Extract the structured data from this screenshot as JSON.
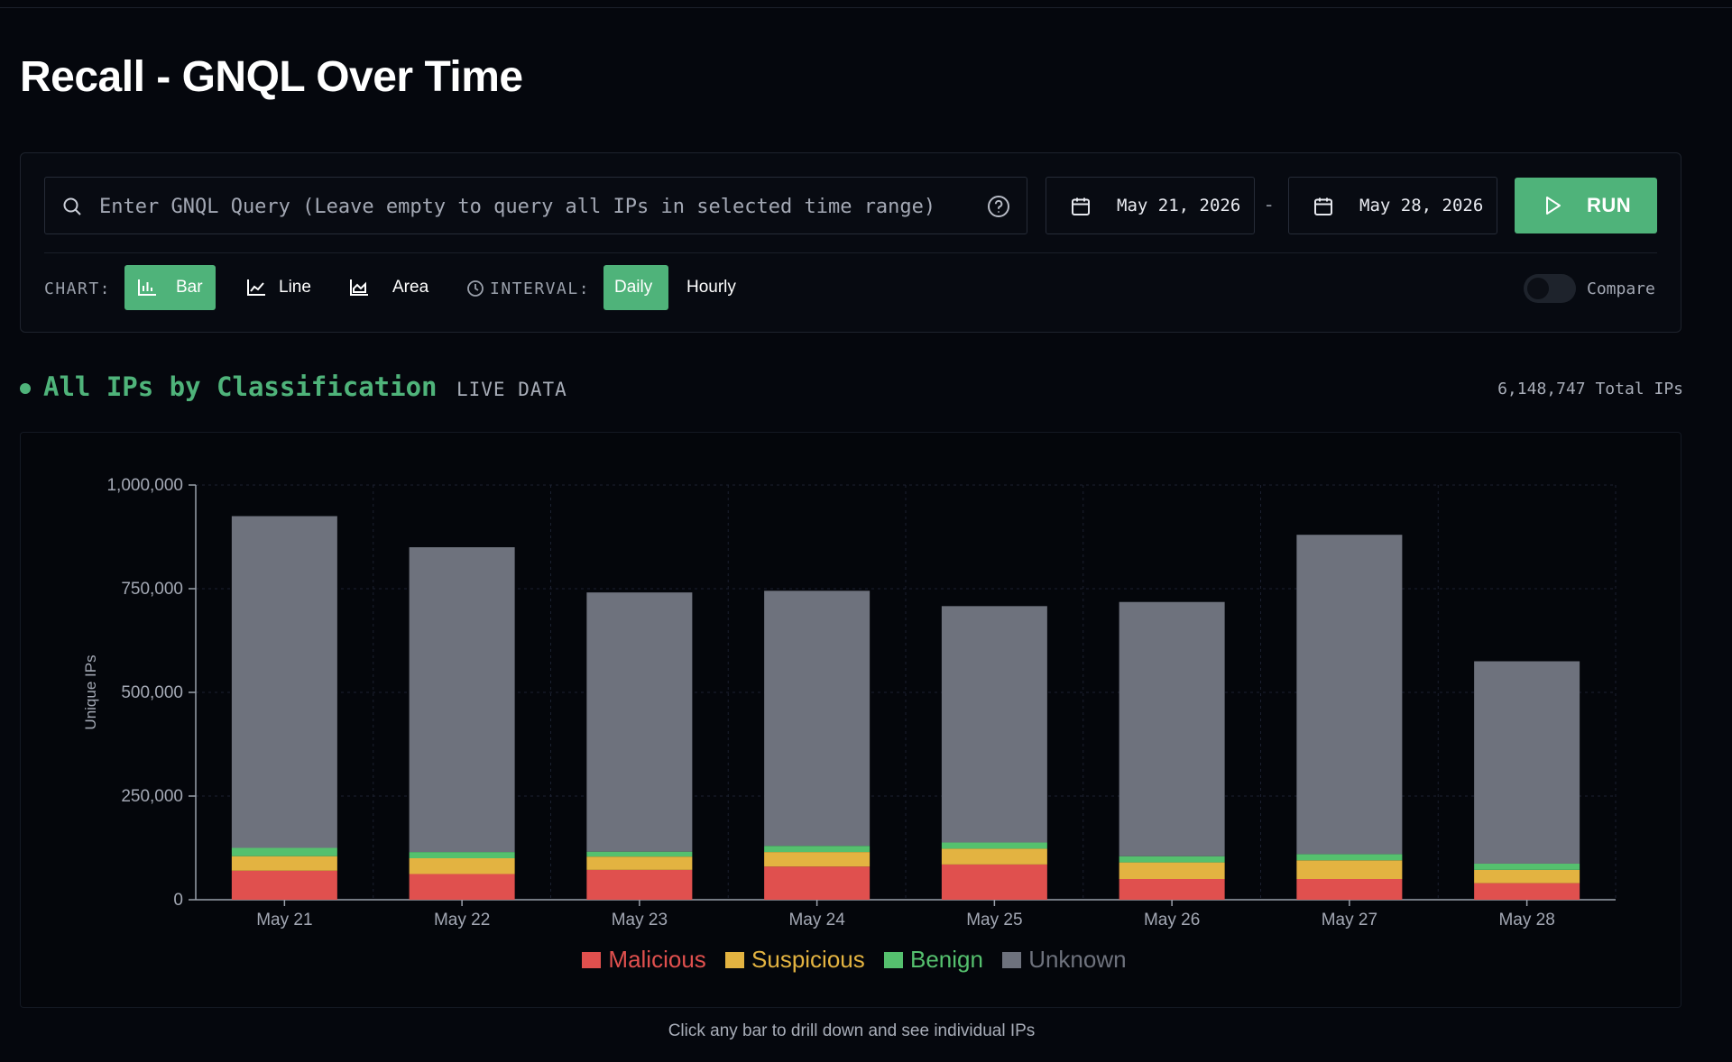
{
  "page": {
    "title": "Recall - GNQL Over Time"
  },
  "query": {
    "placeholder": "Enter GNQL Query (Leave empty to query all IPs in selected time range)",
    "value": "",
    "start_date": "May 21, 2026",
    "end_date": "May 28, 2026",
    "date_separator": "-",
    "run_label": "RUN"
  },
  "controls": {
    "chart_label": "CHART:",
    "chart_types": [
      {
        "label": "Bar",
        "active": true
      },
      {
        "label": "Line",
        "active": false
      },
      {
        "label": "Area",
        "active": false
      }
    ],
    "interval_label": "INTERVAL:",
    "intervals": [
      {
        "label": "Daily",
        "active": true
      },
      {
        "label": "Hourly",
        "active": false
      }
    ],
    "compare_label": "Compare",
    "compare_on": false
  },
  "section": {
    "title": "All IPs by Classification",
    "badge": "LIVE DATA",
    "total": "6,148,747 Total IPs"
  },
  "colors": {
    "accent": "#4fb37a",
    "malicious": "#e0504e",
    "suspicious": "#e3b341",
    "benign": "#55c06e",
    "unknown": "#6e727d"
  },
  "chart_data": {
    "type": "bar",
    "stacked": true,
    "categories": [
      "May 21",
      "May 22",
      "May 23",
      "May 24",
      "May 25",
      "May 26",
      "May 27",
      "May 28"
    ],
    "series": [
      {
        "name": "Malicious",
        "color": "#e0504e",
        "values": [
          70000,
          62000,
          72000,
          80000,
          85000,
          50000,
          50000,
          40000
        ]
      },
      {
        "name": "Suspicious",
        "color": "#e3b341",
        "values": [
          35000,
          38000,
          32000,
          35000,
          38000,
          40000,
          45000,
          32000
        ]
      },
      {
        "name": "Benign",
        "color": "#55c06e",
        "values": [
          20000,
          15000,
          12000,
          15000,
          15000,
          15000,
          15000,
          15000
        ]
      },
      {
        "name": "Unknown",
        "color": "#6e727d",
        "values": [
          800000,
          735000,
          625000,
          615000,
          570000,
          613000,
          770000,
          488000
        ]
      }
    ],
    "ylabel": "Unique IPs",
    "xlabel": "",
    "ylim": [
      0,
      1000000
    ],
    "yticks": [
      0,
      250000,
      500000,
      750000,
      1000000
    ],
    "ytick_labels": [
      "0",
      "250,000",
      "500,000",
      "750,000",
      "1,000,000"
    ],
    "grid": true,
    "legend_position": "bottom-center"
  },
  "footer": {
    "hint": "Click any bar to drill down and see individual IPs"
  }
}
